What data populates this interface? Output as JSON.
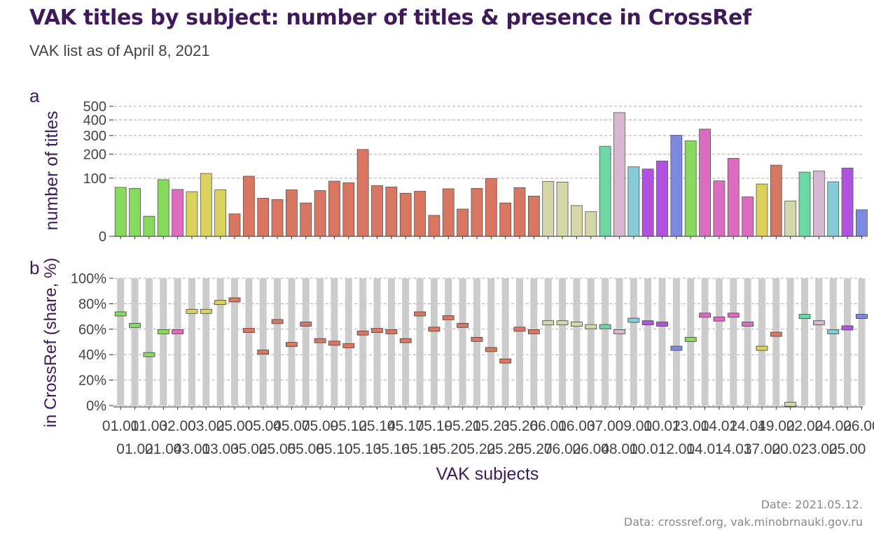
{
  "title": "VAK titles by subject: number of titles & presence in CrossRef",
  "subtitle": "VAK list as of April 8, 2021",
  "caption_date": "Date: 2021.05.12.",
  "caption_source": "Data: crossref.org, vak.minobrnauki.gov.ru",
  "chart_data": [
    {
      "type": "bar",
      "panel_label": "a",
      "ylabel": "number of titles",
      "xlabel": "",
      "y_scale": "sqrt",
      "ylim": [
        0,
        500
      ],
      "yticks": [
        0,
        100,
        200,
        300,
        400,
        500
      ],
      "grid": "horizontal-dashed",
      "categories": [
        "01.01",
        "01.02",
        "01.03",
        "01.04",
        "02.00",
        "03.01",
        "03.02",
        "03.03",
        "05.00",
        "05.02",
        "05.04",
        "05.05",
        "05.07",
        "05.08",
        "05.09",
        "05.10",
        "05.12",
        "05.13",
        "05.14",
        "05.16",
        "05.17",
        "05.18",
        "05.19",
        "05.20",
        "05.21",
        "05.22",
        "05.23",
        "05.25",
        "05.26",
        "05.27",
        "06.01",
        "06.02",
        "06.03",
        "06.04",
        "07.00",
        "08.00",
        "09.00",
        "10.01",
        "10.02",
        "12.00",
        "13.00",
        "14.01",
        "14.02",
        "14.03",
        "14.04",
        "17.00",
        "19.00",
        "20.02",
        "22.00",
        "23.00",
        "24.00",
        "25.00",
        "26.00"
      ],
      "values": [
        71,
        68,
        12,
        95,
        65,
        59,
        117,
        64,
        15,
        107,
        43,
        40,
        64,
        33,
        62,
        90,
        85,
        223,
        76,
        72,
        55,
        60,
        13,
        67,
        22,
        68,
        99,
        33,
        70,
        48,
        89,
        87,
        28,
        18,
        240,
        453,
        143,
        134,
        168,
        302,
        270,
        340,
        91,
        180,
        46,
        81,
        150,
        37,
        122,
        126,
        88,
        138,
        21
      ],
      "colors": [
        "#86db5c",
        "#86db5c",
        "#86db5c",
        "#86db5c",
        "#db6cbf",
        "#dbd25c",
        "#dbd25c",
        "#dbd25c",
        "#d97662",
        "#d97662",
        "#d97662",
        "#d97662",
        "#d97662",
        "#d97662",
        "#d97662",
        "#d97662",
        "#d97662",
        "#d97662",
        "#d97662",
        "#d97662",
        "#d97662",
        "#d97662",
        "#d97662",
        "#d97662",
        "#d97662",
        "#d97662",
        "#d97662",
        "#d97662",
        "#d97662",
        "#d97662",
        "#d5d7a8",
        "#d5d7a8",
        "#d5d7a8",
        "#d5d7a8",
        "#6cd9a4",
        "#d6b9d1",
        "#86ccd6",
        "#b152e0",
        "#b152e0",
        "#7d89df",
        "#86db5c",
        "#db6cbf",
        "#db6cbf",
        "#db6cbf",
        "#db6cbf",
        "#dbd25c",
        "#d97662",
        "#d5d7a8",
        "#6cd9a4",
        "#d6b9d1",
        "#86ccd6",
        "#b152e0",
        "#7d89df"
      ]
    },
    {
      "type": "range-bar",
      "panel_label": "b",
      "ylabel": "in CrossRef (share, %)",
      "xlabel": "VAK subjects",
      "ylim": [
        0,
        100
      ],
      "yticks": [
        "0%",
        "20%",
        "40%",
        "60%",
        "80%",
        "100%"
      ],
      "grid": "horizontal-dashed",
      "background_bars": "0-100% grey columns",
      "values": [
        72,
        63,
        40,
        58,
        58,
        74,
        74,
        81,
        83,
        59,
        42,
        66,
        48,
        64,
        51,
        49,
        47,
        57,
        59,
        58,
        51,
        72,
        60,
        69,
        63,
        52,
        44,
        35,
        60,
        58,
        65,
        65,
        64,
        62,
        62,
        58,
        67,
        65,
        64,
        45,
        52,
        71,
        68,
        71,
        64,
        45,
        56,
        1,
        70,
        65,
        58,
        61,
        70
      ]
    }
  ]
}
